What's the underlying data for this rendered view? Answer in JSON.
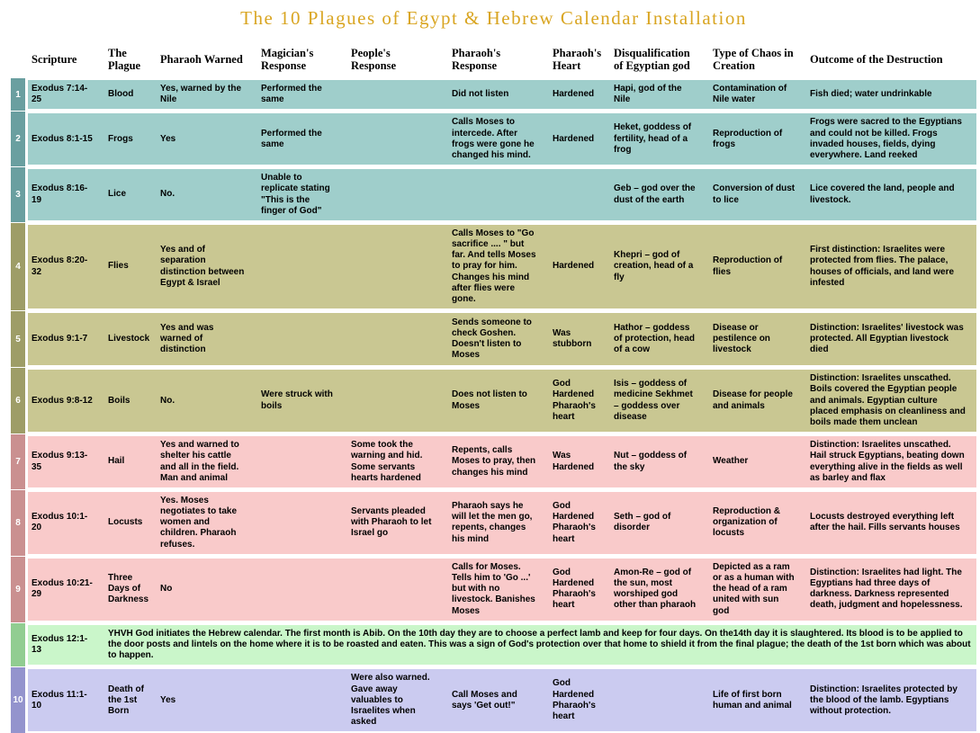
{
  "title": "The 10 Plagues of Egypt & Hebrew Calendar Installation",
  "colors": {
    "title": "#d9a521",
    "teal_row": "#9fcecb",
    "teal_badge": "#6a9fa0",
    "olive_row": "#c9c792",
    "olive_badge": "#9e9d67",
    "pink_row": "#f9caca",
    "pink_badge": "#ca9090",
    "green_row": "#caf6ca",
    "green_badge": "#91cd91",
    "lavender_row": "#cbcbf0",
    "lavender_badge": "#9494cd"
  },
  "table": {
    "columns": [
      "Scripture",
      "The Plague",
      "Pharaoh Warned",
      "Magician's Response",
      "People's Response",
      "Pharaoh's Response",
      "Pharaoh's Heart",
      "Disqualification of Egyptian god",
      "Type of Chaos in Creation",
      "Outcome of the Destruction"
    ],
    "rows": [
      {
        "num": "1",
        "theme": "teal",
        "cells": [
          "Exodus 7:14-25",
          "Blood",
          "Yes, warned by the Nile",
          "Performed the same",
          "",
          "Did not listen",
          "Hardened",
          "Hapi, god of the Nile",
          "Contamination of Nile water",
          "Fish died; water undrinkable"
        ]
      },
      {
        "num": "2",
        "theme": "teal",
        "cells": [
          "Exodus 8:1-15",
          "Frogs",
          "Yes",
          "Performed the same",
          "",
          "Calls Moses to intercede. After frogs were gone he changed his mind.",
          "Hardened",
          "Heket, goddess of fertility, head of a frog",
          "Reproduction of frogs",
          "Frogs were sacred to the Egyptians and could not be killed. Frogs invaded houses, fields, dying everywhere. Land reeked"
        ]
      },
      {
        "num": "3",
        "theme": "teal",
        "cells": [
          "Exodus 8:16-19",
          "Lice",
          "No.",
          "Unable to replicate stating \"This is the finger of God\"",
          "",
          "",
          "",
          "Geb – god over the dust of the earth",
          "Conversion of dust to lice",
          "Lice covered the land, people and livestock."
        ]
      },
      {
        "num": "4",
        "theme": "olive",
        "cells": [
          "Exodus 8:20-32",
          "Flies",
          "Yes and of separation distinction between Egypt & Israel",
          "",
          "",
          "Calls Moses to \"Go sacrifice .... \" but far. And tells Moses to pray for him. Changes his mind after flies were gone.",
          "Hardened",
          "Khepri – god of creation, head of a fly",
          "Reproduction of flies",
          "First distinction: Israelites were protected from flies. The palace, houses of officials, and land were infested"
        ]
      },
      {
        "num": "5",
        "theme": "olive",
        "cells": [
          "Exodus 9:1-7",
          "Livestock",
          "Yes and was warned of distinction",
          "",
          "",
          "Sends someone to check Goshen. Doesn't listen to Moses",
          "Was stubborn",
          "Hathor – goddess of protection, head of a cow",
          "Disease or pestilence on livestock",
          "Distinction: Israelites' livestock was protected. All Egyptian livestock died"
        ]
      },
      {
        "num": "6",
        "theme": "olive",
        "cells": [
          "Exodus 9:8-12",
          "Boils",
          "No.",
          "Were struck with boils",
          "",
          "Does not listen to Moses",
          "God Hardened Pharaoh's heart",
          "Isis – goddess of medicine Sekhmet – goddess over disease",
          "Disease for people and animals",
          "Distinction: Israelites unscathed. Boils covered the Egyptian people and animals. Egyptian culture placed emphasis on cleanliness and boils made them unclean"
        ]
      },
      {
        "num": "7",
        "theme": "pink",
        "cells": [
          "Exodus 9:13-35",
          "Hail",
          "Yes and warned to shelter his cattle and all in the field. Man and animal",
          "",
          "Some took the warning and hid. Some servants hearts hardened",
          "Repents, calls Moses to pray, then changes his mind",
          "Was Hardened",
          "Nut – goddess of the sky",
          "Weather",
          "Distinction: Israelites unscathed. Hail struck Egyptians, beating down everything alive in the fields as well as barley and flax"
        ]
      },
      {
        "num": "8",
        "theme": "pink",
        "cells": [
          "Exodus 10:1-20",
          "Locusts",
          "Yes. Moses negotiates to take women and children. Pharaoh refuses.",
          "",
          "Servants pleaded with Pharaoh to let Israel go",
          "Pharaoh says he will let the men go, repents, changes his mind",
          "God Hardened Pharaoh's heart",
          "Seth – god of disorder",
          "Reproduction  & organization of locusts",
          "Locusts destroyed everything left after the hail. Fills servants houses"
        ]
      },
      {
        "num": "9",
        "theme": "pink",
        "cells": [
          "Exodus 10:21-29",
          "Three Days of Darkness",
          "No",
          "",
          "",
          "Calls for Moses. Tells him to 'Go ...' but with no livestock. Banishes Moses",
          "God Hardened Pharaoh's heart",
          "Amon-Re – god of the sun, most worshiped god other than pharaoh",
          "Depicted as a ram or as a human with the head of a ram united with sun god",
          "Distinction: Israelites had light. The Egyptians had three days of darkness. Darkness represented death, judgment and hopelessness."
        ]
      },
      {
        "num": "",
        "theme": "green",
        "scripture": "Exodus 12:1-13",
        "span_text": "YHVH God initiates the Hebrew calendar. The first month is Abib. On the 10th day they are to choose a perfect lamb and keep for four days. On the14th day it is slaughtered. Its blood is to be applied to the door posts and lintels on the home where it is to be roasted and eaten. This was a sign of God's protection over that home to shield it from the final plague; the death of the 1st born which was about to happen."
      },
      {
        "num": "10",
        "theme": "lavender",
        "cells": [
          "Exodus 11:1-10",
          "Death of the 1st Born",
          "Yes",
          "",
          "Were also warned. Gave away valuables to Israelites when asked",
          "Call Moses and says 'Get out!\"",
          "God Hardened Pharaoh's heart",
          "",
          "Life of first born human and animal",
          "Distinction: Israelites protected by the blood of the lamb. Egyptians without protection."
        ]
      }
    ]
  }
}
